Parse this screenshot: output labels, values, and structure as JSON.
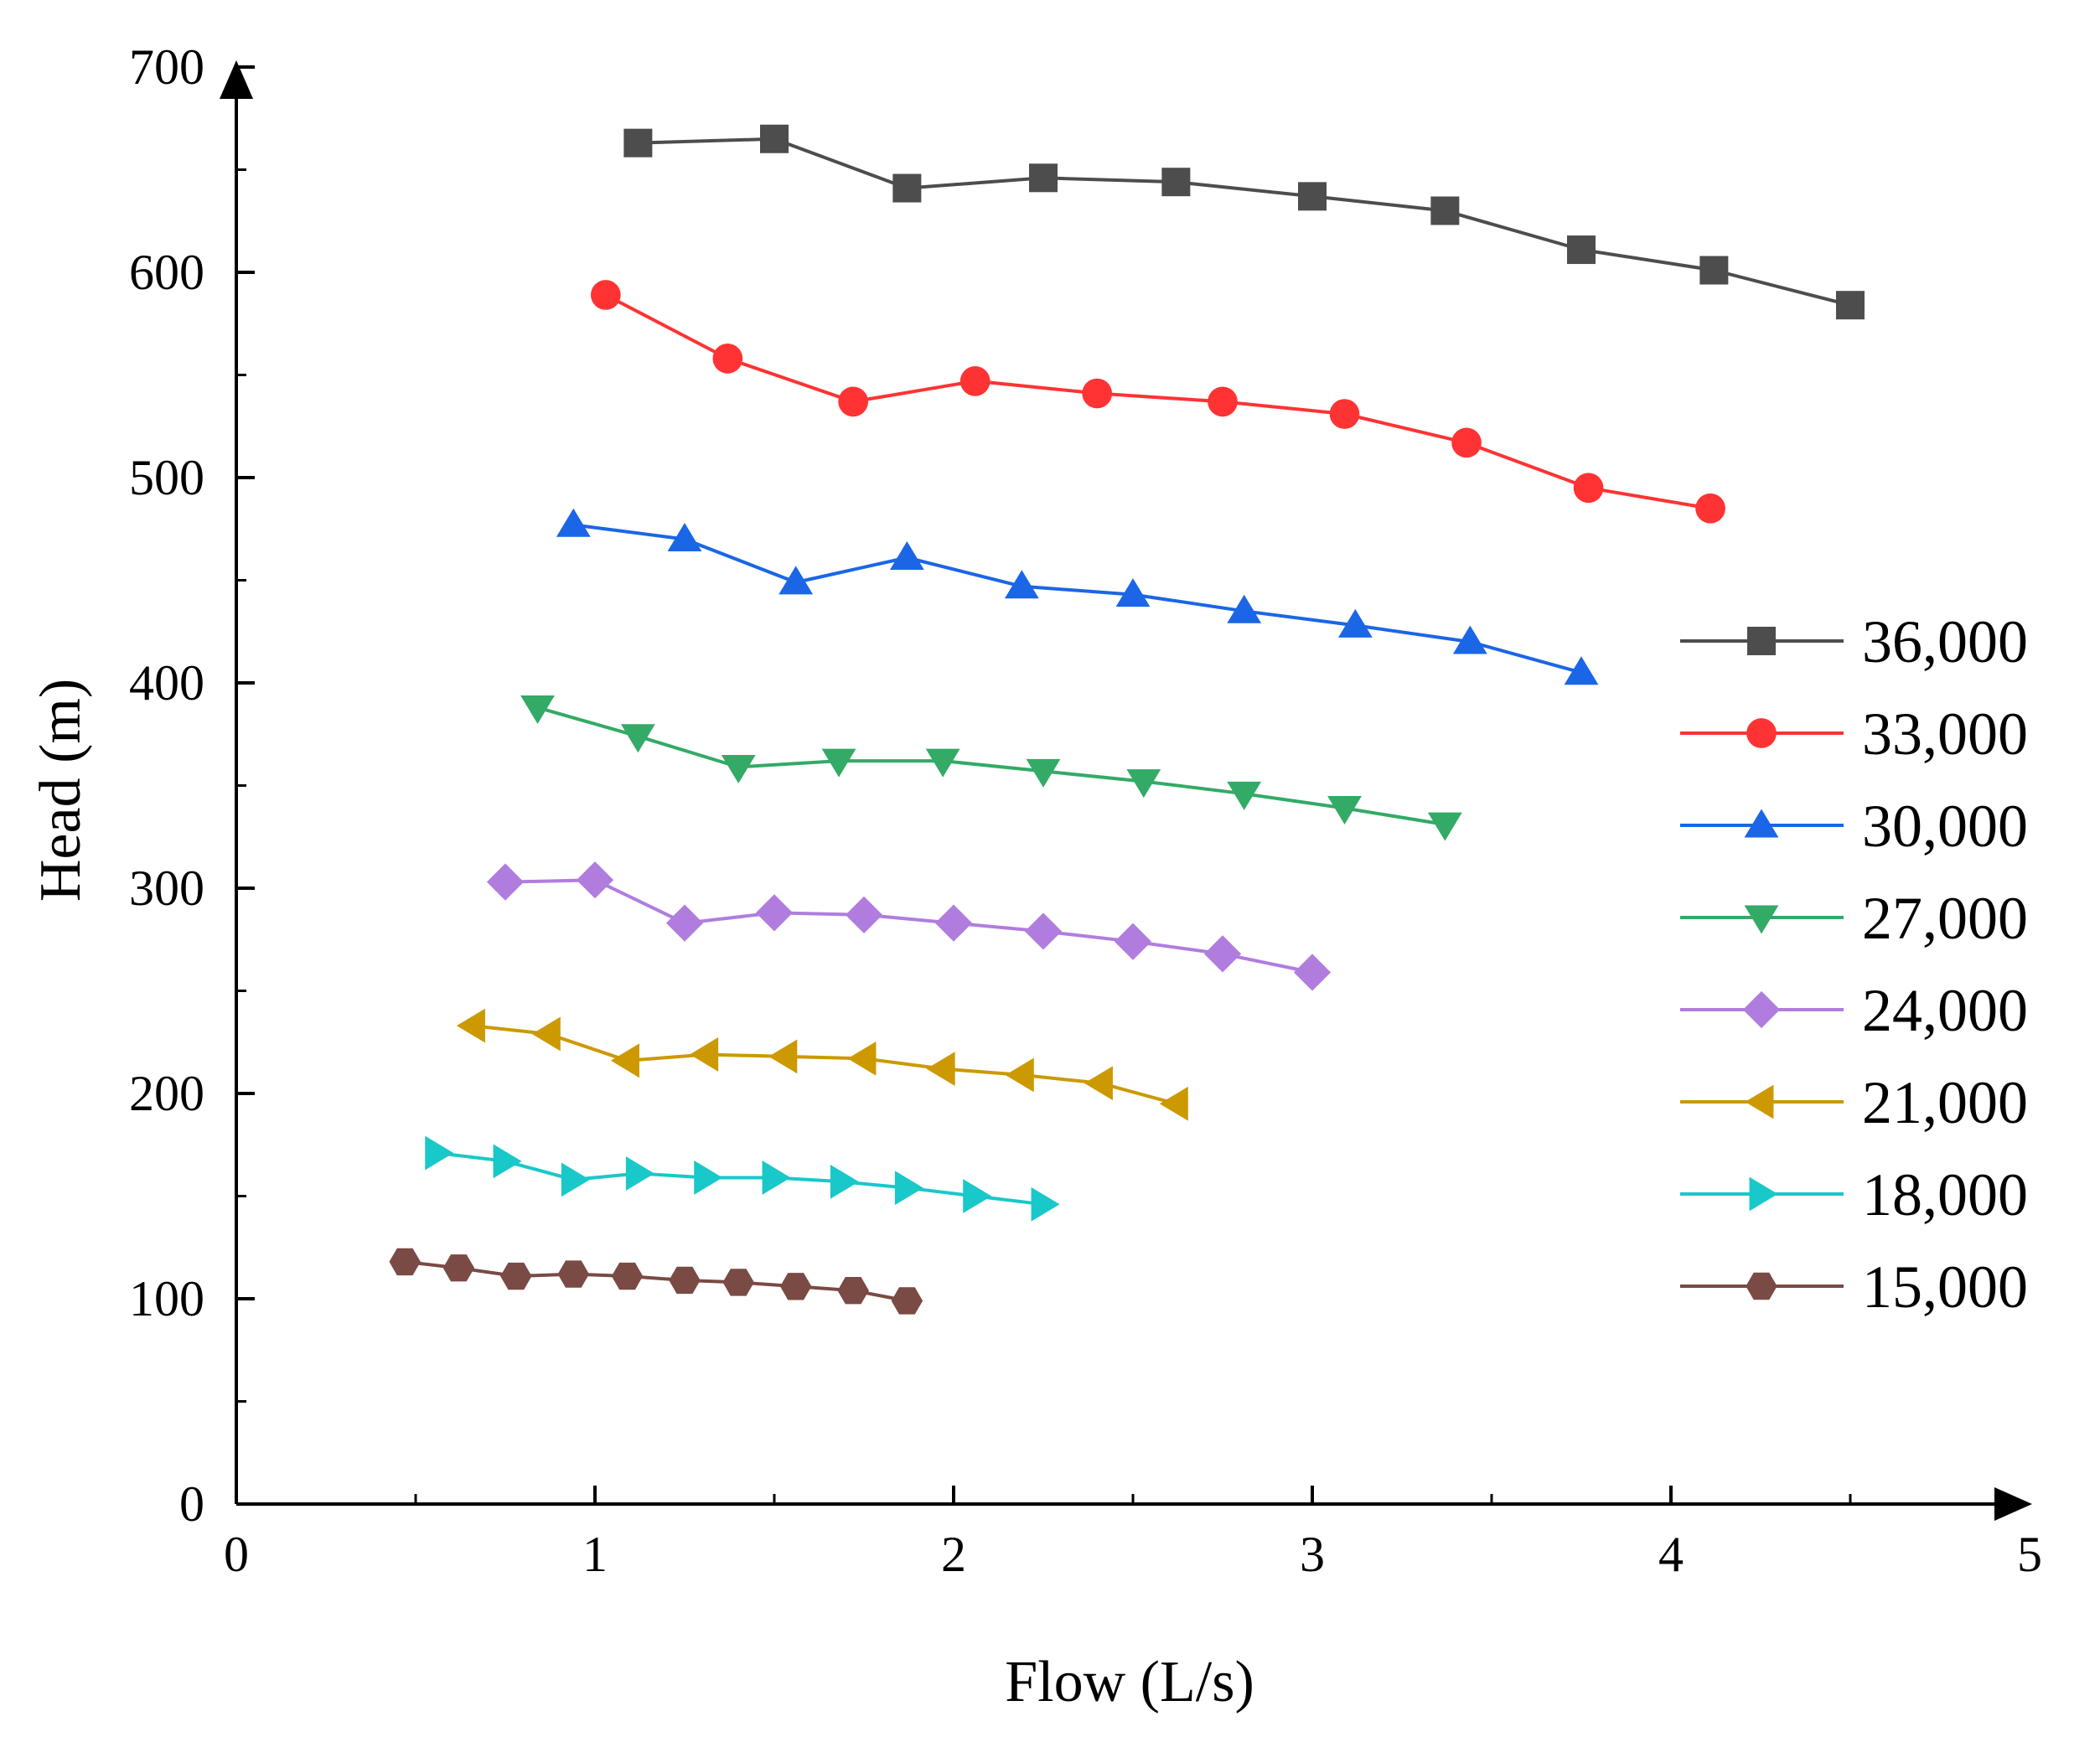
{
  "chart_data": {
    "type": "line",
    "title": "",
    "xlabel": "Flow (L/s)",
    "ylabel": "Head (m)",
    "xlim": [
      0,
      5
    ],
    "ylim": [
      0,
      700
    ],
    "xticks": [
      0,
      1,
      2,
      3,
      4,
      5
    ],
    "yticks": [
      0,
      100,
      200,
      300,
      400,
      500,
      600,
      700
    ],
    "xtick_labels": [
      "0",
      "1",
      "2",
      "3",
      "4",
      "5"
    ],
    "ytick_labels": [
      "0",
      "100",
      "200",
      "300",
      "400",
      "500",
      "600",
      "700"
    ],
    "grid": false,
    "legend_position": "right",
    "series": [
      {
        "name": "36,000",
        "color": "#4d4d4d",
        "marker": "square",
        "x": [
          1.12,
          1.5,
          1.87,
          2.25,
          2.62,
          3.0,
          3.37,
          3.75,
          4.12,
          4.5
        ],
        "y": [
          663,
          665,
          641,
          646,
          644,
          637,
          630,
          611,
          601,
          584
        ]
      },
      {
        "name": "33,000",
        "color": "#ff3333",
        "marker": "circle",
        "x": [
          1.03,
          1.37,
          1.72,
          2.06,
          2.4,
          2.75,
          3.09,
          3.43,
          3.77,
          4.11
        ],
        "y": [
          589,
          558,
          537,
          547,
          541,
          537,
          531,
          517,
          495,
          485
        ]
      },
      {
        "name": "30,000",
        "color": "#1a66e6",
        "marker": "triangle-up",
        "x": [
          0.94,
          1.25,
          1.56,
          1.87,
          2.19,
          2.5,
          2.81,
          3.12,
          3.44,
          3.75
        ],
        "y": [
          477,
          470,
          449,
          461,
          447,
          443,
          435,
          428,
          420,
          405
        ]
      },
      {
        "name": "27,000",
        "color": "#33aa66",
        "marker": "triangle-down",
        "x": [
          0.84,
          1.12,
          1.4,
          1.68,
          1.97,
          2.25,
          2.53,
          2.81,
          3.09,
          3.37
        ],
        "y": [
          388,
          374,
          359,
          362,
          362,
          357,
          352,
          346,
          339,
          331
        ]
      },
      {
        "name": "24,000",
        "color": "#b07ddf",
        "marker": "diamond",
        "x": [
          0.75,
          1.0,
          1.25,
          1.5,
          1.75,
          2.0,
          2.25,
          2.5,
          2.75,
          3.0
        ],
        "y": [
          303,
          304,
          283,
          288,
          287,
          283,
          279,
          274,
          268,
          259
        ]
      },
      {
        "name": "21,000",
        "color": "#cc9900",
        "marker": "triangle-left",
        "x": [
          0.66,
          0.87,
          1.09,
          1.31,
          1.53,
          1.75,
          1.97,
          2.19,
          2.41,
          2.62
        ],
        "y": [
          233,
          229,
          216,
          219,
          218,
          217,
          212,
          209,
          205,
          195
        ]
      },
      {
        "name": "18,000",
        "color": "#19c8c8",
        "marker": "triangle-right",
        "x": [
          0.56,
          0.75,
          0.94,
          1.12,
          1.31,
          1.5,
          1.69,
          1.87,
          2.06,
          2.25
        ],
        "y": [
          171,
          167,
          158,
          161,
          159,
          159,
          157,
          154,
          150,
          146
        ]
      },
      {
        "name": "15,000",
        "color": "#7a4a44",
        "marker": "hexagon",
        "x": [
          0.47,
          0.62,
          0.78,
          0.94,
          1.09,
          1.25,
          1.4,
          1.56,
          1.72,
          1.87
        ],
        "y": [
          118,
          115,
          111,
          112,
          111,
          109,
          108,
          106,
          104,
          99
        ]
      }
    ]
  }
}
